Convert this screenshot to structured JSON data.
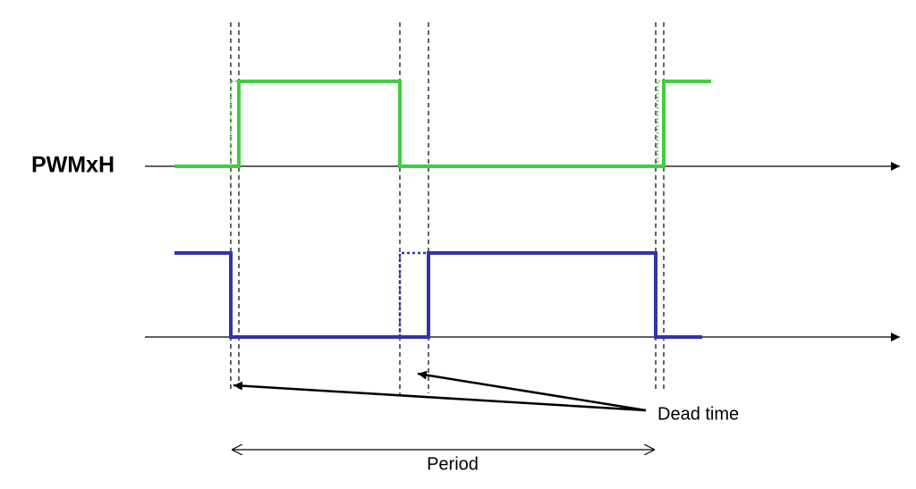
{
  "labels": {
    "signal_high": "PWMxH"
  },
  "annotations": {
    "dead_time": "Dead time",
    "period": "Period"
  }
}
